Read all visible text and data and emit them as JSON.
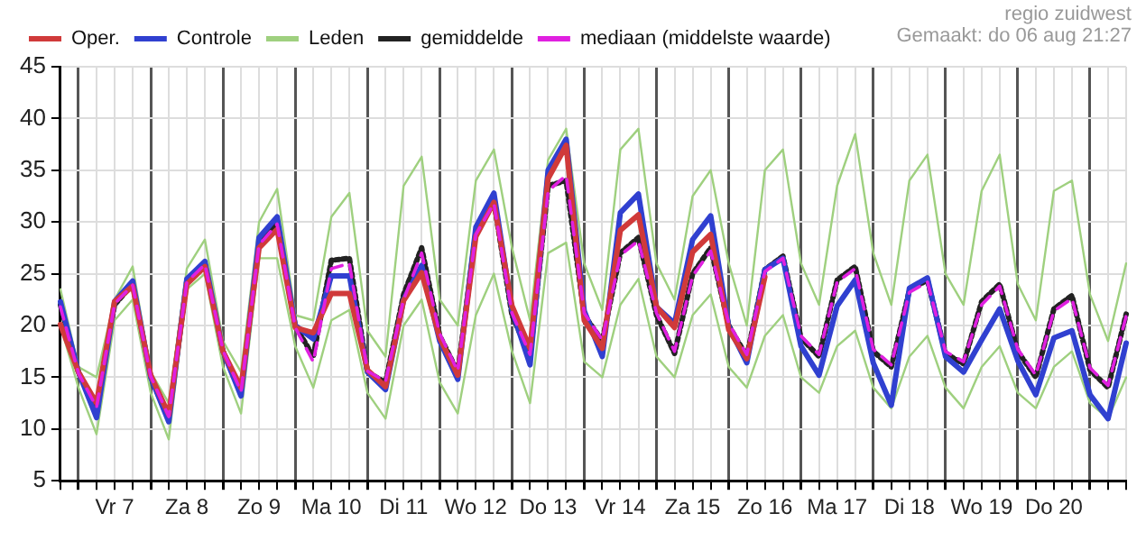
{
  "chart_data": {
    "type": "line",
    "annotations": [
      "regio zuidwest",
      "Gemaakt: do 06 aug 21:27"
    ],
    "categories": [
      null,
      null,
      null,
      "Vr 7",
      null,
      null,
      null,
      "Za 8",
      null,
      null,
      null,
      "Zo 9",
      null,
      null,
      null,
      "Ma 10",
      null,
      null,
      null,
      "Di 11",
      null,
      null,
      null,
      "Wo 12",
      null,
      null,
      null,
      "Do 13",
      null,
      null,
      null,
      "Vr 14",
      null,
      null,
      null,
      "Za 15",
      null,
      null,
      null,
      "Zo 16",
      null,
      null,
      null,
      "Ma 17",
      null,
      null,
      null,
      "Di 18",
      null,
      null,
      null,
      "Wo 19",
      null,
      null,
      null,
      "Do 20",
      null,
      null,
      null,
      null
    ],
    "ylim": [
      5,
      45
    ],
    "yticks": [
      5,
      10,
      15,
      20,
      25,
      30,
      35,
      40,
      45
    ],
    "grid": true,
    "legend": "top",
    "marker": "none",
    "series": [
      {
        "name": "Oper.",
        "color": "#d03a3a",
        "line_style": "solid",
        "values": [
          20.1,
          15.5,
          12.5,
          22.3,
          23.8,
          15.2,
          11.4,
          24,
          25.7,
          17.5,
          14,
          27.5,
          29.3,
          19.8,
          19.3,
          23.1,
          23.1,
          15.7,
          14.1,
          22.4,
          25.1,
          18.8,
          15.2,
          28.6,
          31.9,
          21.9,
          17.8,
          34.2,
          37.4,
          20.5,
          17.8,
          29.2,
          30.7,
          21.8,
          19.8,
          27.1,
          28.8,
          19.6,
          16.8,
          24.7,
          null,
          null,
          null,
          null,
          null,
          null,
          null,
          null,
          null,
          null,
          null,
          null,
          null,
          null,
          null,
          null,
          null,
          null,
          null,
          null
        ]
      },
      {
        "name": "Controle",
        "color": "#3040d0",
        "line_style": "solid",
        "values": [
          22.3,
          15.5,
          11.1,
          22.3,
          24.3,
          15,
          10.7,
          24.5,
          26.2,
          17.5,
          13.2,
          28.5,
          30.5,
          20,
          18.7,
          24.8,
          24.8,
          15.5,
          13.8,
          22.5,
          25.8,
          18.5,
          14.8,
          29.5,
          32.8,
          21.5,
          16.2,
          35,
          38,
          21.4,
          17,
          30.9,
          32.7,
          21.8,
          20.2,
          28.3,
          30.6,
          19.9,
          16.4,
          25.4,
          26.5,
          18,
          15.2,
          21.9,
          24.4,
          16.4,
          12.3,
          23.6,
          24.6,
          17,
          15.5,
          18.6,
          21.6,
          16.6,
          13.3,
          18.8,
          19.5,
          13.3,
          11,
          18.3
        ]
      },
      {
        "name": "Leden",
        "color": "#9fd07f",
        "line_style": "solid",
        "values": [
          23.5,
          16,
          15,
          22.5,
          25.7,
          15.5,
          12.5,
          25.5,
          28.3,
          18.5,
          15.5,
          30,
          33.2,
          21,
          20.5,
          30.5,
          32.8,
          19.5,
          17,
          33.5,
          36.3,
          22.5,
          20,
          34,
          37,
          27.5,
          20.5,
          36,
          39,
          26,
          21.5,
          37,
          39,
          26,
          22.5,
          32.5,
          35,
          26,
          20,
          35,
          37,
          26,
          22,
          33.5,
          38.5,
          27,
          22,
          34,
          36.5,
          25,
          22,
          33,
          36.5,
          24,
          20.5,
          33,
          34,
          23,
          18.5,
          26
        ]
      },
      {
        "color": "#9fd07f",
        "line_style": "solid",
        "values": [
          20,
          14,
          9.5,
          20.5,
          22.5,
          13.5,
          9,
          23.5,
          25,
          16,
          11.5,
          26.5,
          26.5,
          18,
          14,
          20.5,
          21.5,
          13.5,
          11,
          20,
          22.5,
          14.5,
          11.5,
          21,
          25,
          17.5,
          12.5,
          27,
          28,
          16.5,
          15,
          22,
          24.5,
          17,
          15,
          21,
          23,
          16,
          14,
          19,
          21,
          15,
          13.5,
          18,
          19.5,
          14,
          12,
          17,
          19,
          14,
          12,
          16,
          18,
          13.5,
          12,
          16,
          17.5,
          12.5,
          11,
          15
        ]
      },
      {
        "name": "gemiddelde",
        "color": "#222222",
        "line_style": "dotted",
        "values": [
          22,
          15.5,
          12,
          22,
          24,
          15,
          11,
          24.3,
          26,
          17.5,
          13.5,
          28,
          30,
          20,
          17,
          26.3,
          26.5,
          15.5,
          14.5,
          23,
          27.5,
          19,
          15.5,
          29,
          32,
          21,
          17,
          33.5,
          34,
          21,
          18.5,
          27,
          28.5,
          21,
          17.3,
          25,
          27.5,
          20,
          17,
          25.4,
          26.7,
          18.8,
          17,
          24.4,
          25.7,
          17.5,
          16,
          23.4,
          24.4,
          17.3,
          16.3,
          22.3,
          24,
          17.5,
          15,
          21.6,
          22.9,
          15.7,
          14,
          21.1
        ]
      },
      {
        "name": "mediaan (middelste waarde)",
        "color": "#e020e0",
        "line_style": "dashed",
        "values": [
          21.8,
          15.4,
          12.1,
          22.1,
          23.9,
          15.1,
          11.2,
          24.2,
          25.9,
          17.6,
          13.6,
          27.8,
          29.8,
          19.8,
          16.5,
          25.5,
          26,
          15.6,
          14.6,
          22.5,
          27,
          19.2,
          15.6,
          28.8,
          31.8,
          21.2,
          17.2,
          33,
          34.5,
          21.2,
          18.6,
          26.8,
          28.2,
          21.2,
          17.5,
          24.8,
          27.2,
          20.2,
          17.2,
          25.2,
          26.5,
          19,
          17.2,
          24.2,
          25.5,
          17.7,
          16.2,
          23.2,
          24.2,
          17.5,
          16.5,
          22,
          23.8,
          17.7,
          15.2,
          21.4,
          22.6,
          15.9,
          14.2,
          20.9
        ]
      }
    ]
  }
}
